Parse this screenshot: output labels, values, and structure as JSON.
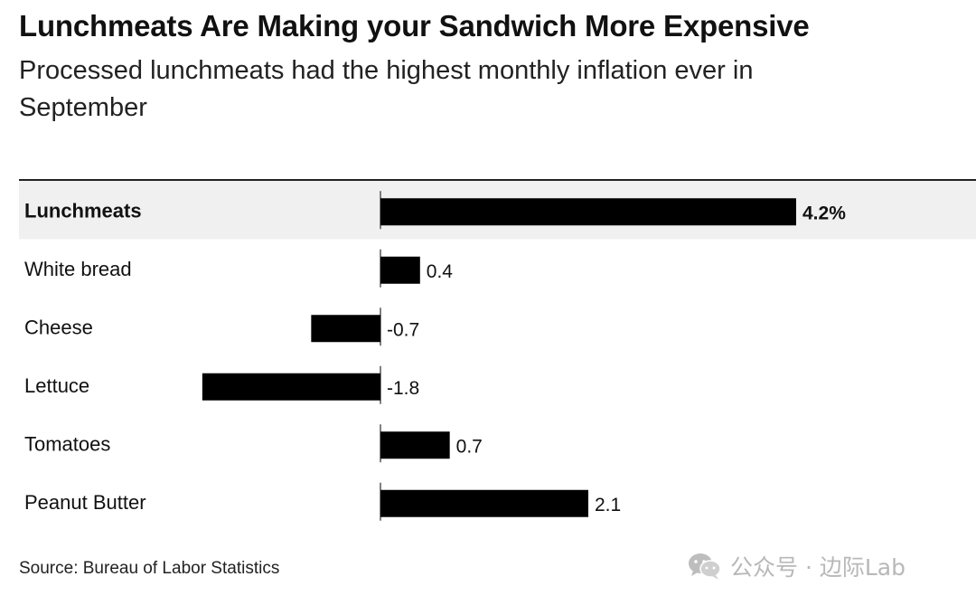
{
  "chart_data": {
    "type": "bar",
    "orientation": "horizontal",
    "title": "Lunchmeats Are Making your Sandwich More Expensive",
    "subtitle": "Processed lunchmeats had the highest monthly inflation ever in September",
    "categories": [
      "Lunchmeats",
      "White bread",
      "Cheese",
      "Lettuce",
      "Tomatoes",
      "Peanut Butter"
    ],
    "values": [
      4.2,
      0.4,
      -0.7,
      -1.8,
      0.7,
      2.1
    ],
    "value_labels": [
      "4.2%",
      "0.4",
      "-0.7",
      "-1.8",
      "0.7",
      "2.1"
    ],
    "highlighted_category": "Lunchmeats",
    "xlim": [
      -3.6,
      4.2
    ],
    "bar_color": "#000000",
    "highlight_background": "#f0f0f0",
    "grid": false,
    "source": "Source: Bureau of Labor Statistics"
  },
  "watermark": {
    "icon": "wechat-icon",
    "text": "公众号 · 边际Lab"
  }
}
